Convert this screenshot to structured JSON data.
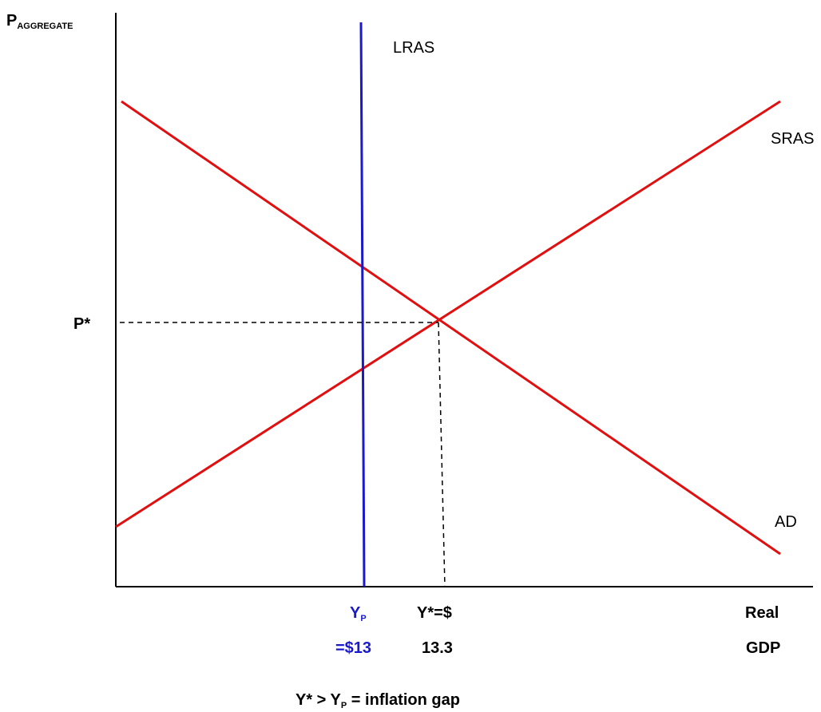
{
  "y_axis": {
    "label_main": "P",
    "label_sub": "AGGREGATE"
  },
  "x_axis": {
    "label_line1": "Real",
    "label_line2": "GDP"
  },
  "curves": {
    "lras": "LRAS",
    "sras": "SRAS",
    "ad": "AD"
  },
  "equilibrium": {
    "price_label": "P*",
    "output_label_line1": "Y*=$",
    "output_label_line2": "13.3"
  },
  "potential": {
    "label_main": "Y",
    "label_sub": "P",
    "value_label": "=$13"
  },
  "caption": {
    "part1": "Y* > Y",
    "sub": "P",
    "part2": " = inflation gap"
  },
  "colors": {
    "lras": "#1a1acc",
    "sras": "#e01010",
    "ad": "#e01010",
    "axis": "#000000",
    "potential_label": "#1a1acc"
  }
}
